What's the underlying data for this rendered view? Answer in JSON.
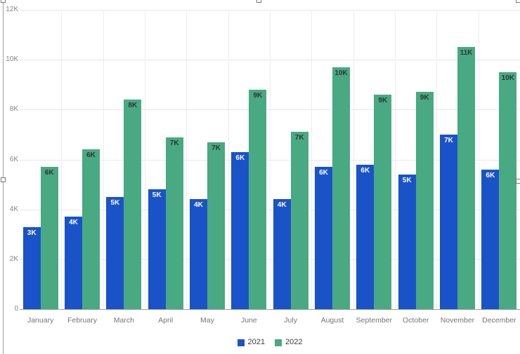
{
  "chart_data": {
    "type": "bar",
    "title": "",
    "categories": [
      "January",
      "February",
      "March",
      "April",
      "May",
      "June",
      "July",
      "August",
      "September",
      "October",
      "November",
      "December"
    ],
    "series": [
      {
        "name": "2021",
        "color": "#1a53c8",
        "label_color": "#ffffff",
        "values": [
          3300,
          3700,
          4500,
          4800,
          4400,
          6300,
          4400,
          5700,
          5800,
          5400,
          7000,
          5600
        ],
        "labels": [
          "3K",
          "4K",
          "5K",
          "5K",
          "4K",
          "6K",
          "4K",
          "6K",
          "6K",
          "5K",
          "7K",
          "6K"
        ]
      },
      {
        "name": "2022",
        "color": "#48a983",
        "label_color": "#333333",
        "values": [
          5700,
          6400,
          8400,
          6900,
          6700,
          8800,
          7100,
          9700,
          8600,
          8700,
          10500,
          9500
        ],
        "labels": [
          "6K",
          "6K",
          "8K",
          "7K",
          "7K",
          "9K",
          "7K",
          "10K",
          "9K",
          "9K",
          "11K",
          "10K"
        ]
      }
    ],
    "y_axis": {
      "min": 0,
      "max": 12000,
      "tick_step": 2000,
      "tick_labels": [
        "0",
        "2K",
        "4K",
        "6K",
        "8K",
        "10K",
        "12K"
      ]
    },
    "grid": {
      "horizontal": true,
      "vertical": true
    },
    "legend": {
      "position": "bottom-center",
      "entries": [
        "2021",
        "2022"
      ]
    }
  },
  "colors": {
    "background": "#ffffff",
    "gridline": "#e8e8e8",
    "axis_line": "#9e9e9e",
    "axis_text": "#858585",
    "month_text": "#757575",
    "legend_text": "#3c3c3c",
    "selection_border": "#9e9e9e"
  }
}
